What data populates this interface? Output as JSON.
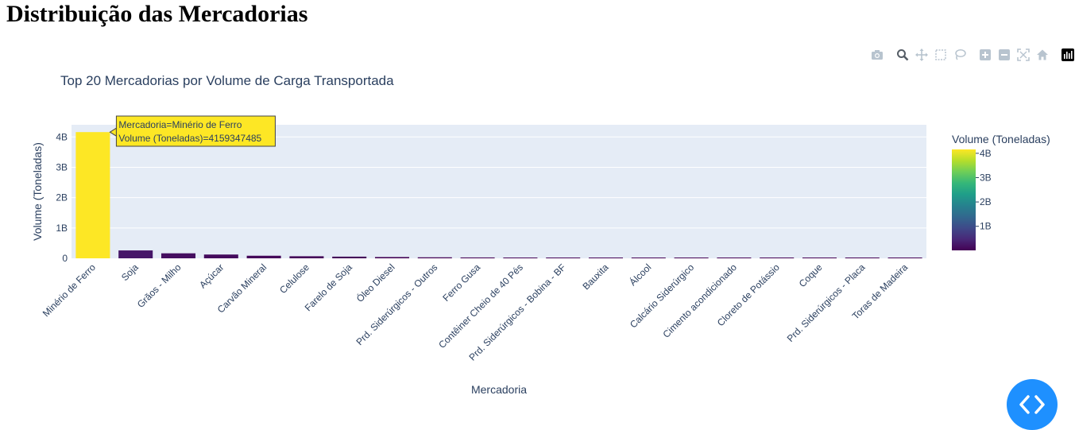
{
  "page": {
    "heading": "Distribuição das Mercadorias"
  },
  "colors": {
    "plot_bg": "#e5ecf6",
    "grid": "#ffffff",
    "text": "#2a3f5f",
    "tooltip_bg": "#fde725",
    "fab": "#1e90ff"
  },
  "toolbar": {
    "icons": [
      "camera-icon",
      "zoom-icon",
      "pan-icon",
      "box-select-icon",
      "lasso-icon",
      "zoom-in-icon",
      "zoom-out-icon",
      "autoscale-icon",
      "home-icon",
      "plotly-logo-icon"
    ]
  },
  "chart_data": {
    "type": "bar",
    "title": "Top 20 Mercadorias por Volume de Carga Transportada",
    "xlabel": "Mercadoria",
    "ylabel": "Volume (Toneladas)",
    "ylim": [
      0,
      4400000000
    ],
    "yticks": [
      0,
      1000000000,
      2000000000,
      3000000000,
      4000000000
    ],
    "ytick_labels": [
      "0",
      "1B",
      "2B",
      "3B",
      "4B"
    ],
    "categories": [
      "Minério de Ferro",
      "Soja",
      "Grãos - Milho",
      "Açúcar",
      "Carvão Mineral",
      "Celulose",
      "Farelo de Soja",
      "Óleo Diesel",
      "Prd. Siderúrgicos - Outros",
      "Ferro Gusa",
      "Contêiner Cheio de 40 Pés",
      "Prd. Siderúrgicos - Bobina - BF",
      "Bauxita",
      "Álcool",
      "Calcário Siderúrgico",
      "Cimento acondicionado",
      "Cloreto de Potássio",
      "Coque",
      "Prd. Siderúrgicos - Placa",
      "Toras de Madeira"
    ],
    "values": [
      4159347485,
      260000000,
      165000000,
      125000000,
      85000000,
      68000000,
      55000000,
      42000000,
      33000000,
      28000000,
      25000000,
      22000000,
      20000000,
      18000000,
      16000000,
      14000000,
      13000000,
      12000000,
      11000000,
      10000000
    ],
    "colorscale": "Viridis",
    "colorbar": {
      "title": "Volume (Toneladas)",
      "ticks": [
        1000000000,
        2000000000,
        3000000000,
        4000000000
      ],
      "tick_labels": [
        "1B",
        "2B",
        "3B",
        "4B"
      ],
      "range": [
        10000000,
        4159347485
      ]
    },
    "hover": {
      "lines": [
        "Mercadoria=Minério de Ferro",
        "Volume (Toneladas)=4159347485"
      ]
    },
    "grid": true
  }
}
